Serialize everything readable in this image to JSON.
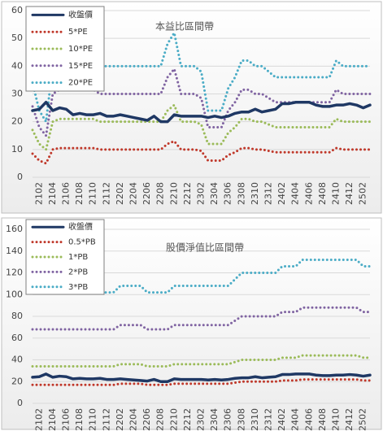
{
  "chart_data": [
    {
      "type": "line",
      "title": "本益比區間帶",
      "categories": [
        null,
        "2102",
        null,
        "2104",
        null,
        "2106",
        null,
        "2108",
        null,
        "2110",
        null,
        "2112",
        null,
        "2202",
        null,
        "2204",
        null,
        "2206",
        null,
        "2208",
        null,
        "2210",
        null,
        "2212",
        null,
        "2302",
        null,
        "2304",
        null,
        "2306",
        null,
        "2308",
        null,
        "2310",
        null,
        "2312",
        null,
        "2402",
        null,
        "2404",
        null,
        "2406",
        null,
        "2408",
        null,
        "2410",
        null,
        "2412",
        null,
        "2502",
        null
      ],
      "series": [
        {
          "name": "收盤價",
          "color": "#1f3864",
          "line_style": "solid",
          "values": [
            24,
            24.5,
            27,
            24,
            25,
            24.5,
            22.5,
            23,
            22.5,
            22.5,
            23,
            22,
            22,
            22.5,
            22,
            21.5,
            21,
            20.5,
            22,
            20,
            20,
            22.5,
            22,
            22,
            22,
            22,
            21.5,
            22,
            21.5,
            22,
            23,
            23.5,
            23.5,
            24.5,
            23.5,
            24,
            24.5,
            26.5,
            26.5,
            27,
            27,
            27,
            26,
            25.5,
            25.5,
            26,
            26,
            26.5,
            26,
            25,
            26
          ]
        },
        {
          "name": "5*PE",
          "color": "#c0392b",
          "line_style": "dotted",
          "values": [
            8.5,
            6,
            5,
            10,
            10.5,
            10.5,
            10.5,
            10.5,
            10.5,
            10.5,
            10,
            10,
            10,
            10,
            10,
            10,
            10,
            10,
            10,
            10,
            12,
            13,
            10,
            10,
            10,
            9.5,
            6,
            6,
            6,
            8,
            9,
            10.5,
            10.5,
            10,
            10,
            9.5,
            9,
            9,
            9,
            9,
            9,
            9,
            9,
            9,
            9,
            10.5,
            10,
            10,
            10,
            10,
            10
          ]
        },
        {
          "name": "10*PE",
          "color": "#9bbb59",
          "line_style": "dotted",
          "values": [
            17,
            12,
            10,
            20,
            21,
            21,
            21,
            21,
            21,
            21,
            20,
            20,
            20,
            20,
            20,
            20,
            20,
            20,
            20,
            20,
            24,
            26,
            20,
            20,
            20,
            19,
            12,
            12,
            12,
            16,
            18,
            21,
            21,
            20,
            20,
            19,
            18,
            18,
            18,
            18,
            18,
            18,
            18,
            18,
            18,
            21,
            20,
            20,
            20,
            20,
            20
          ]
        },
        {
          "name": "15*PE",
          "color": "#8064a2",
          "line_style": "dotted",
          "values": [
            25.5,
            18,
            15,
            30,
            31.5,
            31.5,
            31.5,
            31.5,
            31.5,
            31.5,
            30,
            30,
            30,
            30,
            30,
            30,
            30,
            30,
            30,
            30,
            36,
            39,
            30,
            30,
            30,
            28.5,
            18,
            18,
            18,
            24,
            27,
            31.5,
            31.5,
            30,
            30,
            28.5,
            27,
            27,
            27,
            27,
            27,
            27,
            27,
            27,
            27,
            31.5,
            30,
            30,
            30,
            30,
            30
          ]
        },
        {
          "name": "20*PE",
          "color": "#4bacc6",
          "line_style": "dotted",
          "values": [
            34,
            24,
            20,
            40,
            42,
            42,
            42,
            42,
            42,
            42,
            40,
            40,
            40,
            40,
            40,
            40,
            40,
            40,
            40,
            40,
            48,
            52,
            40,
            40,
            40,
            38,
            24,
            24,
            24,
            32,
            36,
            42,
            42,
            40,
            40,
            38,
            36,
            36,
            36,
            36,
            36,
            36,
            36,
            36,
            36,
            42,
            40,
            40,
            40,
            40,
            40
          ]
        }
      ],
      "ylim": [
        0,
        60
      ],
      "yticks": [
        0,
        10,
        20,
        30,
        40,
        50,
        60
      ],
      "grid": true,
      "legend": "top-left"
    },
    {
      "type": "line",
      "title": "股價淨值比區間帶",
      "categories": [
        null,
        "2102",
        null,
        "2104",
        null,
        "2106",
        null,
        "2108",
        null,
        "2110",
        null,
        "2112",
        null,
        "2202",
        null,
        "2204",
        null,
        "2206",
        null,
        "2208",
        null,
        "2210",
        null,
        "2212",
        null,
        "2302",
        null,
        "2304",
        null,
        "2306",
        null,
        "2308",
        null,
        "2310",
        null,
        "2312",
        null,
        "2402",
        null,
        "2404",
        null,
        "2406",
        null,
        "2408",
        null,
        "2410",
        null,
        "2412",
        null,
        "2502",
        null
      ],
      "series": [
        {
          "name": "收盤價",
          "color": "#1f3864",
          "line_style": "solid",
          "values": [
            24,
            24.5,
            27,
            24,
            25,
            24.5,
            22.5,
            23,
            22.5,
            22.5,
            23,
            22,
            22,
            22.5,
            22,
            21.5,
            21,
            20.5,
            22,
            20,
            20,
            22.5,
            22,
            22,
            22,
            22,
            21.5,
            22,
            21.5,
            22,
            23,
            23.5,
            23.5,
            24.5,
            23.5,
            24,
            24.5,
            26.5,
            26.5,
            27,
            27,
            27,
            26,
            25.5,
            25.5,
            26,
            26,
            26.5,
            26,
            25,
            26
          ]
        },
        {
          "name": "0.5*PB",
          "color": "#c0392b",
          "line_style": "dotted",
          "values": [
            17,
            17,
            17,
            17,
            17,
            17,
            17,
            17,
            17,
            17,
            17,
            17,
            17,
            18,
            18,
            18,
            18,
            17,
            17,
            17,
            17,
            18,
            18,
            18,
            18,
            18,
            18,
            18,
            18,
            18,
            19,
            20,
            20,
            20,
            20,
            20,
            20,
            21,
            21,
            21,
            22,
            22,
            22,
            22,
            22,
            22,
            22,
            22,
            22,
            21,
            21
          ]
        },
        {
          "name": "1*PB",
          "color": "#9bbb59",
          "line_style": "dotted",
          "values": [
            34,
            34,
            34,
            34,
            34,
            34,
            34,
            34,
            34,
            34,
            34,
            34,
            34,
            36,
            36,
            36,
            36,
            34,
            34,
            34,
            34,
            36,
            36,
            36,
            36,
            36,
            36,
            36,
            36,
            36,
            38,
            40,
            40,
            40,
            40,
            40,
            40,
            42,
            42,
            42,
            44,
            44,
            44,
            44,
            44,
            44,
            44,
            44,
            44,
            42,
            42
          ]
        },
        {
          "name": "2*PB",
          "color": "#8064a2",
          "line_style": "dotted",
          "values": [
            68,
            68,
            68,
            68,
            68,
            68,
            68,
            68,
            68,
            68,
            68,
            68,
            68,
            72,
            72,
            72,
            72,
            68,
            68,
            68,
            68,
            72,
            72,
            72,
            72,
            72,
            72,
            72,
            72,
            72,
            76,
            80,
            80,
            80,
            80,
            80,
            80,
            84,
            84,
            84,
            88,
            88,
            88,
            88,
            88,
            88,
            88,
            88,
            88,
            84,
            84
          ]
        },
        {
          "name": "3*PB",
          "color": "#4bacc6",
          "line_style": "dotted",
          "values": [
            102,
            102,
            102,
            102,
            102,
            102,
            102,
            102,
            102,
            102,
            102,
            102,
            102,
            108,
            108,
            108,
            108,
            102,
            102,
            102,
            102,
            108,
            108,
            108,
            108,
            108,
            108,
            108,
            108,
            108,
            114,
            120,
            120,
            120,
            120,
            120,
            120,
            126,
            126,
            126,
            132,
            132,
            132,
            132,
            132,
            132,
            132,
            132,
            132,
            126,
            126
          ]
        }
      ],
      "ylim": [
        0,
        160
      ],
      "yticks": [
        0,
        20,
        40,
        60,
        80,
        100,
        120,
        140,
        160
      ],
      "grid": true,
      "legend": "top-left"
    }
  ]
}
